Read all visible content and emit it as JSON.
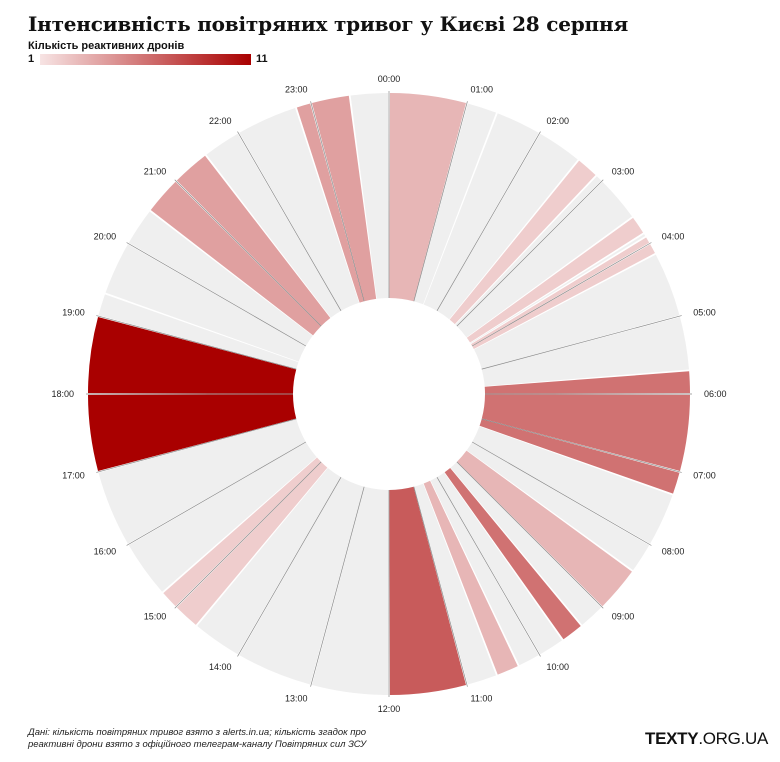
{
  "header": {
    "title": "Інтенсивність повітряних тривог у Києві 28 серпня"
  },
  "legend": {
    "title": "Кількість реактивних дронів",
    "min_label": "1",
    "max_label": "11",
    "min": 1,
    "max": 11,
    "color_low": "#f7e4e4",
    "color_high": "#a90000",
    "color_none": "#efefef"
  },
  "footer": {
    "source": "Дані: кількість повітряних тривог взято з alerts.in.ua; кількість згадок про реактивні дрони взято з офіційного телеграм-каналу Повітряних сил ЗСУ",
    "brand_bold": "TEXTY",
    "brand_rest": ".ORG.UA"
  },
  "chart_data": {
    "type": "radial-bar",
    "hour_labels": [
      "00:00",
      "01:00",
      "02:00",
      "03:00",
      "04:00",
      "05:00",
      "06:00",
      "07:00",
      "08:00",
      "09:00",
      "10:00",
      "11:00",
      "12:00",
      "13:00",
      "14:00",
      "15:00",
      "16:00",
      "17:00",
      "18:00",
      "19:00",
      "20:00",
      "21:00",
      "22:00",
      "23:00"
    ],
    "hours": [
      {
        "label": "00:00",
        "segments": [
          {
            "length": 1.0,
            "drones": 3,
            "dividers": []
          }
        ]
      },
      {
        "label": "01:00",
        "segments": [
          {
            "length": 0.4,
            "drones": 0
          },
          {
            "length": 0.6,
            "drones": 0
          }
        ],
        "dividers": []
      },
      {
        "label": "02:00",
        "segments": [
          {
            "length": 0.6,
            "drones": 0
          },
          {
            "length": 0.3,
            "drones": 2
          },
          {
            "length": 0.1,
            "drones": 0
          }
        ]
      },
      {
        "label": "03:00",
        "segments": [
          {
            "length": 0.6,
            "drones": 0
          },
          {
            "length": 0.25,
            "drones": 2
          },
          {
            "length": 0.05,
            "drones": 0
          },
          {
            "length": 0.1,
            "drones": 2
          }
        ]
      },
      {
        "label": "04:00",
        "segments": [
          {
            "length": 0.15,
            "drones": 2
          },
          {
            "length": 0.85,
            "drones": 0
          }
        ]
      },
      {
        "label": "05:00",
        "segments": [
          {
            "length": 0.7,
            "drones": 0
          },
          {
            "length": 0.3,
            "drones": 6
          }
        ]
      },
      {
        "label": "06:00",
        "segments": [
          {
            "length": 1.0,
            "drones": 6
          }
        ]
      },
      {
        "label": "07:00",
        "segments": [
          {
            "length": 0.3,
            "drones": 6
          },
          {
            "length": 0.7,
            "drones": 0
          }
        ]
      },
      {
        "label": "08:00",
        "segments": [
          {
            "length": 0.4,
            "drones": 0
          },
          {
            "length": 0.6,
            "drones": 3
          }
        ]
      },
      {
        "label": "09:00",
        "segments": [
          {
            "length": 0.35,
            "drones": 0
          },
          {
            "length": 0.3,
            "drones": 6
          },
          {
            "length": 0.35,
            "drones": 0
          }
        ]
      },
      {
        "label": "10:00",
        "segments": [
          {
            "length": 0.3,
            "drones": 0
          },
          {
            "length": 0.3,
            "drones": 3
          },
          {
            "length": 0.4,
            "drones": 0
          }
        ]
      },
      {
        "label": "11:00",
        "segments": [
          {
            "length": 1.0,
            "drones": 7
          }
        ]
      },
      {
        "label": "12:00",
        "segments": [
          {
            "length": 1.0,
            "drones": 0
          }
        ]
      },
      {
        "label": "13:00",
        "segments": [
          {
            "length": 1.0,
            "drones": 0
          }
        ]
      },
      {
        "label": "14:00",
        "segments": [
          {
            "length": 0.65,
            "drones": 0
          },
          {
            "length": 0.35,
            "drones": 2
          }
        ]
      },
      {
        "label": "15:00",
        "segments": [
          {
            "length": 0.25,
            "drones": 2
          },
          {
            "length": 0.75,
            "drones": 0
          }
        ]
      },
      {
        "label": "16:00",
        "segments": [
          {
            "length": 1.0,
            "drones": 0
          }
        ]
      },
      {
        "label": "17:00",
        "segments": [
          {
            "length": 1.0,
            "drones": 11
          }
        ]
      },
      {
        "label": "18:00",
        "segments": [
          {
            "length": 1.0,
            "drones": 11
          }
        ]
      },
      {
        "label": "19:00",
        "segments": [
          {
            "length": 0.3,
            "drones": 0
          },
          {
            "length": 0.7,
            "drones": 0
          }
        ]
      },
      {
        "label": "20:00",
        "segments": [
          {
            "length": 0.5,
            "drones": 0
          },
          {
            "length": 0.5,
            "drones": 4
          }
        ]
      },
      {
        "label": "21:00",
        "segments": [
          {
            "length": 0.5,
            "drones": 4
          },
          {
            "length": 0.5,
            "drones": 0
          }
        ]
      },
      {
        "label": "22:00",
        "segments": [
          {
            "length": 0.8,
            "drones": 0
          },
          {
            "length": 0.2,
            "drones": 4
          }
        ]
      },
      {
        "label": "23:00",
        "segments": [
          {
            "length": 0.5,
            "drones": 4
          },
          {
            "length": 0.5,
            "drones": 0
          }
        ]
      }
    ]
  }
}
